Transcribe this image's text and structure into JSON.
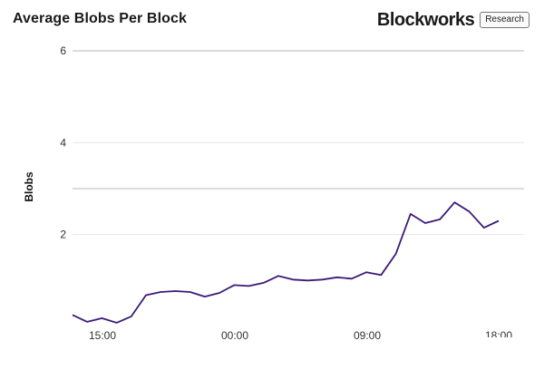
{
  "title": "Average Blobs Per Block",
  "brand": {
    "name": "Blockworks",
    "tag": "Research"
  },
  "colors": {
    "line": "#3d1a78",
    "grid": "#e6e6e6",
    "gridStrong": "#b8b8b8"
  },
  "chart_data": {
    "type": "line",
    "title": "Average Blobs Per Block",
    "xlabel": "",
    "ylabel": "Blobs",
    "ylim": [
      0,
      6
    ],
    "yticks": [
      2,
      4,
      6
    ],
    "grid": true,
    "xticks": [
      "15:00",
      "00:00",
      "09:00",
      "18:00"
    ],
    "series": [
      {
        "values": [
          0.25,
          0.1,
          0.18,
          0.08,
          0.22,
          0.68,
          0.75,
          0.77,
          0.75,
          0.65,
          0.73,
          0.9,
          0.88,
          0.95,
          1.1,
          1.02,
          1.0,
          1.02,
          1.07,
          1.04,
          1.18,
          1.12,
          1.58,
          2.45,
          2.25,
          2.33,
          2.7,
          2.5,
          2.15,
          2.3
        ]
      }
    ]
  }
}
